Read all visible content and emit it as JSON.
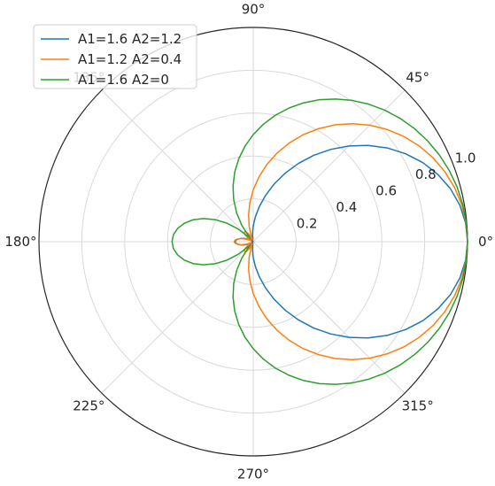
{
  "chart_data": {
    "type": "line",
    "projection": "polar",
    "theta_unit": "degrees",
    "r_range": [
      0,
      1.0
    ],
    "r_ticks": [
      0.2,
      0.4,
      0.6,
      0.8,
      1.0
    ],
    "r_tick_labels": [
      "0.2",
      "0.4",
      "0.6",
      "0.8",
      "1.0"
    ],
    "theta_ticks": [
      0,
      45,
      90,
      135,
      180,
      225,
      270,
      315
    ],
    "theta_tick_labels": [
      "0°",
      "45°",
      "90°",
      "135°",
      "180°",
      "225°",
      "270°",
      "315°"
    ],
    "grid": true,
    "legend_position": "top-left",
    "series": [
      {
        "name": "A1=1.6 A2=1.2",
        "color": "#1f77b4",
        "theta": [
          0,
          5,
          10,
          15,
          20,
          25,
          30,
          35,
          40,
          45,
          50,
          55,
          60,
          65,
          70,
          75,
          80,
          85,
          90,
          95,
          100,
          105,
          110,
          115,
          120,
          125,
          130,
          135,
          140,
          145,
          150,
          155,
          160,
          165,
          170,
          175,
          180
        ],
        "r": [
          1.0,
          0.995,
          0.979,
          0.953,
          0.917,
          0.873,
          0.821,
          0.763,
          0.699,
          0.632,
          0.562,
          0.492,
          0.422,
          0.353,
          0.287,
          0.225,
          0.168,
          0.118,
          0.074,
          0.039,
          0.013,
          0.008,
          0.02,
          0.029,
          0.034,
          0.035,
          0.032,
          0.023,
          0.012,
          0.001,
          0.014,
          0.028,
          0.044,
          0.059,
          0.072,
          0.081,
          0.084
        ]
      },
      {
        "name": "A1=1.2 A2=0.4",
        "color": "#ff7f0e",
        "theta": [
          0,
          5,
          10,
          15,
          20,
          25,
          30,
          35,
          40,
          45,
          50,
          55,
          60,
          65,
          70,
          75,
          80,
          85,
          90,
          95,
          100,
          105,
          110,
          115,
          120,
          125,
          130,
          135,
          140,
          145,
          150,
          155,
          160,
          165,
          170,
          175,
          180
        ],
        "r": [
          1.0,
          0.997,
          0.988,
          0.973,
          0.952,
          0.926,
          0.894,
          0.857,
          0.815,
          0.769,
          0.719,
          0.666,
          0.609,
          0.551,
          0.49,
          0.428,
          0.366,
          0.303,
          0.242,
          0.182,
          0.126,
          0.074,
          0.028,
          0.011,
          0.038,
          0.054,
          0.061,
          0.059,
          0.049,
          0.033,
          0.012,
          0.011,
          0.033,
          0.055,
          0.073,
          0.085,
          0.089
        ]
      },
      {
        "name": "A1=1.6 A2=0",
        "color": "#2ca02c",
        "theta": [
          0,
          5,
          10,
          15,
          20,
          25,
          30,
          35,
          40,
          45,
          50,
          55,
          60,
          65,
          70,
          75,
          80,
          85,
          90,
          95,
          100,
          105,
          110,
          115,
          120,
          125,
          130,
          135,
          140,
          145,
          150,
          155,
          160,
          165,
          170,
          175,
          180
        ],
        "r": [
          1.0,
          0.998,
          0.993,
          0.985,
          0.973,
          0.958,
          0.94,
          0.919,
          0.895,
          0.868,
          0.838,
          0.805,
          0.769,
          0.731,
          0.69,
          0.646,
          0.6,
          0.551,
          0.5,
          0.447,
          0.392,
          0.335,
          0.276,
          0.216,
          0.155,
          0.093,
          0.031,
          0.031,
          0.092,
          0.151,
          0.206,
          0.256,
          0.299,
          0.333,
          0.358,
          0.374,
          0.379
        ]
      }
    ]
  }
}
